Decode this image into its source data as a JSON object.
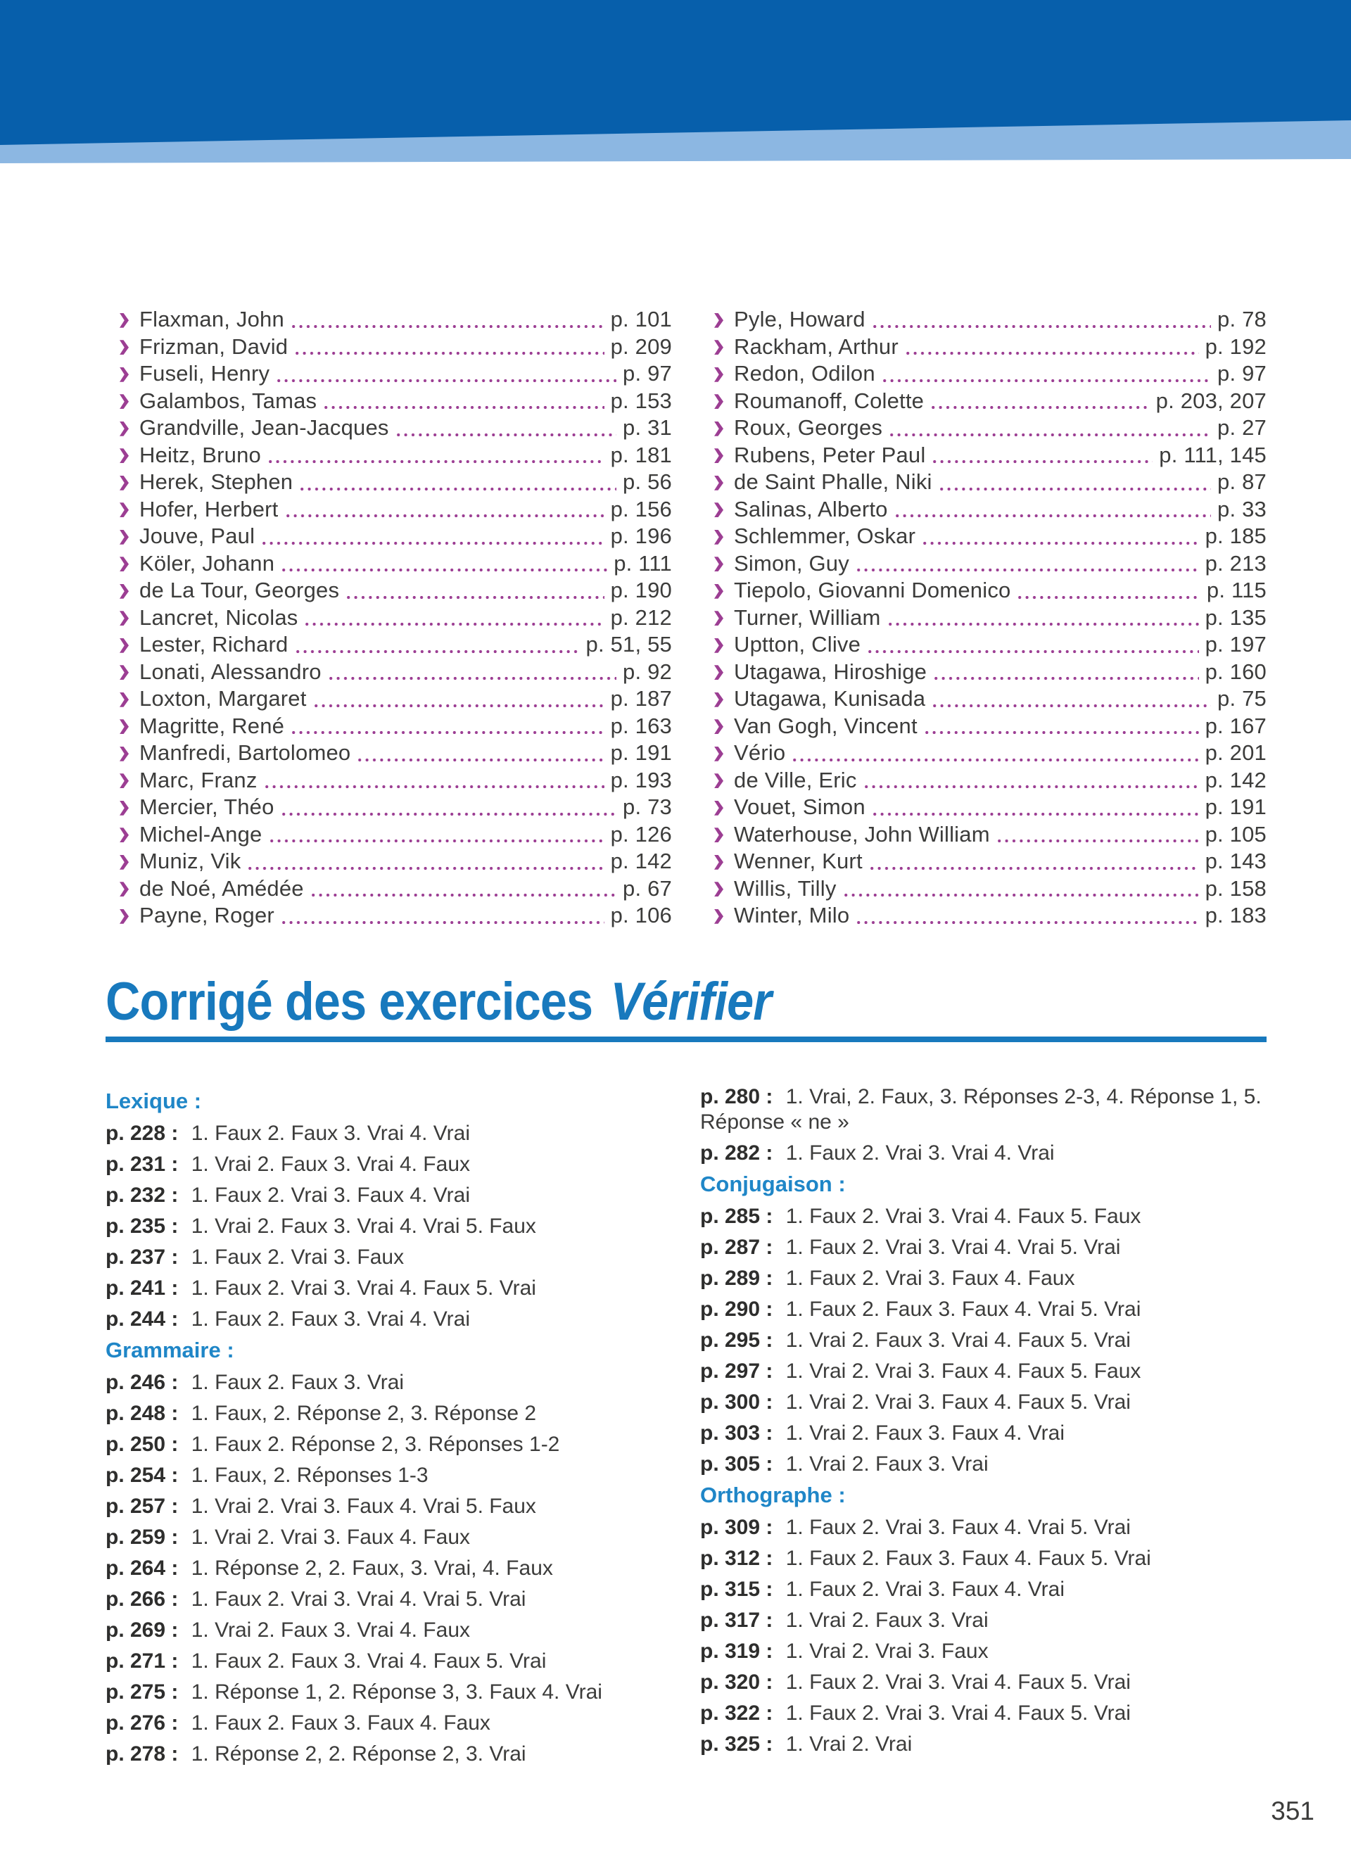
{
  "colors": {
    "banner_dark_blue": "#075fab",
    "banner_light_blue": "#8cb7e2",
    "heading_blue": "#1879bd",
    "section_header_blue": "#1f86c7",
    "bullet_purple": "#9c3e93",
    "body_text": "#3c3c3b"
  },
  "heading": {
    "title": "Corrigé des exercices",
    "title_italic": "Vérifier"
  },
  "index": {
    "left": [
      {
        "name": "Flaxman, John",
        "page": "p. 101"
      },
      {
        "name": "Frizman, David",
        "page": "p. 209"
      },
      {
        "name": "Fuseli, Henry",
        "page": "p. 97"
      },
      {
        "name": "Galambos, Tamas",
        "page": "p. 153"
      },
      {
        "name": "Grandville, Jean-Jacques",
        "page": "p. 31"
      },
      {
        "name": "Heitz, Bruno",
        "page": "p. 181"
      },
      {
        "name": "Herek, Stephen",
        "page": "p. 56"
      },
      {
        "name": "Hofer, Herbert",
        "page": "p. 156"
      },
      {
        "name": "Jouve, Paul",
        "page": "p. 196"
      },
      {
        "name": "Köler, Johann",
        "page": "p. 111"
      },
      {
        "name": "de La Tour, Georges",
        "page": "p. 190"
      },
      {
        "name": "Lancret, Nicolas",
        "page": "p. 212"
      },
      {
        "name": "Lester, Richard",
        "page": "p. 51, 55"
      },
      {
        "name": "Lonati, Alessandro",
        "page": "p. 92"
      },
      {
        "name": "Loxton, Margaret",
        "page": "p. 187"
      },
      {
        "name": "Magritte, René",
        "page": "p. 163"
      },
      {
        "name": "Manfredi, Bartolomeo",
        "page": "p. 191"
      },
      {
        "name": "Marc, Franz",
        "page": "p. 193"
      },
      {
        "name": "Mercier, Théo",
        "page": "p. 73"
      },
      {
        "name": "Michel-Ange",
        "page": "p. 126"
      },
      {
        "name": "Muniz, Vik",
        "page": "p. 142"
      },
      {
        "name": "de Noé, Amédée",
        "page": "p. 67"
      },
      {
        "name": "Payne, Roger",
        "page": "p. 106"
      }
    ],
    "right": [
      {
        "name": "Pyle, Howard",
        "page": "p. 78"
      },
      {
        "name": "Rackham, Arthur",
        "page": "p. 192"
      },
      {
        "name": "Redon, Odilon",
        "page": "p. 97"
      },
      {
        "name": "Roumanoff, Colette",
        "page": "p. 203, 207"
      },
      {
        "name": "Roux, Georges",
        "page": "p. 27"
      },
      {
        "name": "Rubens, Peter Paul",
        "page": "p. 111, 145"
      },
      {
        "name": "de Saint Phalle, Niki",
        "page": "p. 87"
      },
      {
        "name": "Salinas, Alberto",
        "page": "p. 33"
      },
      {
        "name": "Schlemmer, Oskar",
        "page": "p. 185"
      },
      {
        "name": "Simon, Guy",
        "page": "p. 213"
      },
      {
        "name": "Tiepolo, Giovanni Domenico",
        "page": "p. 115"
      },
      {
        "name": "Turner, William",
        "page": "p. 135"
      },
      {
        "name": "Uptton, Clive",
        "page": "p. 197"
      },
      {
        "name": "Utagawa, Hiroshige",
        "page": "p. 160"
      },
      {
        "name": "Utagawa, Kunisada",
        "page": "p. 75"
      },
      {
        "name": "Van Gogh, Vincent",
        "page": "p. 167"
      },
      {
        "name": "Vério",
        "page": "p. 201"
      },
      {
        "name": "de Ville, Eric",
        "page": "p. 142"
      },
      {
        "name": "Vouet, Simon",
        "page": "p. 191"
      },
      {
        "name": "Waterhouse, John William",
        "page": "p. 105"
      },
      {
        "name": "Wenner, Kurt",
        "page": "p. 143"
      },
      {
        "name": "Willis, Tilly",
        "page": "p. 158"
      },
      {
        "name": "Winter, Milo",
        "page": "p. 183"
      }
    ]
  },
  "answers": {
    "left": [
      {
        "header": "Lexique :"
      },
      {
        "page": "p. 228 :",
        "text": "1. Faux 2. Faux 3. Vrai 4. Vrai"
      },
      {
        "page": "p. 231 :",
        "text": "1. Vrai 2. Faux 3. Vrai 4. Faux"
      },
      {
        "page": "p. 232 :",
        "text": "1. Faux 2. Vrai 3. Faux 4. Vrai"
      },
      {
        "page": "p. 235 :",
        "text": "1. Vrai 2. Faux 3. Vrai 4. Vrai 5. Faux"
      },
      {
        "page": "p. 237 :",
        "text": "1. Faux 2. Vrai 3. Faux"
      },
      {
        "page": "p. 241 :",
        "text": "1. Faux 2. Vrai 3. Vrai 4. Faux 5. Vrai"
      },
      {
        "page": "p. 244 :",
        "text": "1. Faux 2. Faux 3. Vrai 4. Vrai"
      },
      {
        "header": "Grammaire :"
      },
      {
        "page": "p. 246 :",
        "text": "1. Faux 2. Faux 3. Vrai"
      },
      {
        "page": "p. 248 :",
        "text": "1. Faux, 2. Réponse 2, 3. Réponse 2"
      },
      {
        "page": "p. 250 :",
        "text": "1. Faux 2. Réponse 2, 3. Réponses 1-2"
      },
      {
        "page": "p. 254 :",
        "text": "1. Faux, 2. Réponses 1-3"
      },
      {
        "page": "p. 257 :",
        "text": "1. Vrai 2. Vrai 3. Faux 4. Vrai 5. Faux"
      },
      {
        "page": "p. 259 :",
        "text": "1. Vrai 2. Vrai 3. Faux 4. Faux"
      },
      {
        "page": "p. 264 :",
        "text": "1. Réponse 2, 2. Faux, 3. Vrai, 4. Faux"
      },
      {
        "page": "p. 266 :",
        "text": "1. Faux 2. Vrai 3. Vrai 4. Vrai 5. Vrai"
      },
      {
        "page": "p. 269 :",
        "text": "1. Vrai 2. Faux 3. Vrai 4. Faux"
      },
      {
        "page": "p. 271 :",
        "text": "1. Faux 2. Faux 3. Vrai 4. Faux 5. Vrai"
      },
      {
        "page": "p. 275 :",
        "text": "1. Réponse 1, 2. Réponse 3, 3. Faux 4. Vrai"
      },
      {
        "page": "p. 276 :",
        "text": "1. Faux 2. Faux 3. Faux 4. Faux"
      },
      {
        "page": "p. 278 :",
        "text": "1. Réponse 2, 2. Réponse 2, 3. Vrai"
      }
    ],
    "right": [
      {
        "page": "p. 280 :",
        "text": "1. Vrai, 2. Faux, 3. Réponses 2-3, 4. Réponse 1, 5. Réponse « ne »"
      },
      {
        "page": "p. 282 :",
        "text": "1. Faux 2. Vrai 3. Vrai 4. Vrai"
      },
      {
        "header": "Conjugaison :"
      },
      {
        "page": "p. 285 :",
        "text": "1. Faux 2. Vrai 3. Vrai 4. Faux 5. Faux"
      },
      {
        "page": "p. 287 :",
        "text": "1. Faux 2. Vrai 3. Vrai 4. Vrai 5. Vrai"
      },
      {
        "page": "p. 289 :",
        "text": "1. Faux 2. Vrai 3. Faux 4. Faux"
      },
      {
        "page": "p. 290 :",
        "text": "1. Faux 2. Faux 3. Faux 4. Vrai 5. Vrai"
      },
      {
        "page": "p. 295 :",
        "text": "1. Vrai 2. Faux 3. Vrai 4. Faux 5. Vrai"
      },
      {
        "page": "p. 297 :",
        "text": "1. Vrai 2. Vrai 3. Faux 4. Faux 5. Faux"
      },
      {
        "page": "p. 300 :",
        "text": "1. Vrai 2. Vrai 3. Faux 4. Faux 5. Vrai"
      },
      {
        "page": "p. 303 :",
        "text": "1. Vrai 2. Faux 3. Faux 4. Vrai"
      },
      {
        "page": "p. 305 :",
        "text": "1. Vrai 2. Faux 3. Vrai"
      },
      {
        "header": "Orthographe :"
      },
      {
        "page": "p. 309 :",
        "text": "1. Faux 2. Vrai 3. Faux 4. Vrai 5. Vrai"
      },
      {
        "page": "p. 312 :",
        "text": "1. Faux 2. Faux 3. Faux 4. Faux 5. Vrai"
      },
      {
        "page": "p. 315 :",
        "text": "1. Faux 2. Vrai 3. Faux 4. Vrai"
      },
      {
        "page": "p. 317 :",
        "text": "1. Vrai 2. Faux 3. Vrai"
      },
      {
        "page": "p. 319 :",
        "text": "1. Vrai 2. Vrai 3. Faux"
      },
      {
        "page": "p. 320 :",
        "text": "1. Faux 2. Vrai 3. Vrai 4. Faux 5. Vrai"
      },
      {
        "page": "p. 322 :",
        "text": "1. Faux 2. Vrai 3. Vrai 4. Faux 5. Vrai"
      },
      {
        "page": "p. 325 :",
        "text": "1. Vrai 2. Vrai"
      }
    ]
  },
  "page_number": "351"
}
